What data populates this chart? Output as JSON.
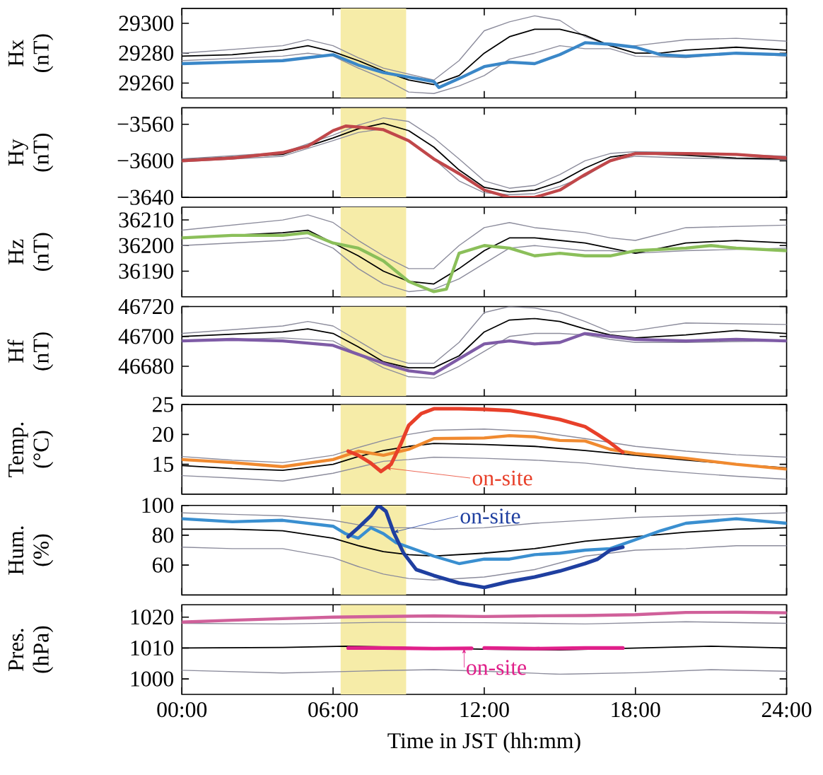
{
  "chart_data": [
    {
      "type": "line",
      "ylabel": "Hx (nT)",
      "xlim": [
        0,
        24
      ],
      "ylim": [
        29250,
        29310
      ],
      "yticks": [
        29260,
        29280,
        29300
      ],
      "xticks": [
        0,
        6,
        12,
        18,
        24
      ],
      "tick_labels": "y",
      "bands": [
        {
          "axis": "x",
          "from": 6.3,
          "to": 8.9,
          "color": "#f6eca8"
        }
      ],
      "series": [
        {
          "color": "#8c8c9c",
          "x": [
            0,
            4,
            5,
            6,
            7,
            8,
            9,
            10,
            11,
            12,
            13,
            14,
            15,
            16,
            17,
            18,
            20,
            22,
            24
          ],
          "values": [
            29280,
            29285,
            29289,
            29285,
            29277,
            29270,
            29266,
            29262,
            29275,
            29295,
            29301,
            29305,
            29302,
            29291,
            29285,
            29285,
            29289,
            29290,
            29288
          ]
        },
        {
          "color": "#8c8c9c",
          "x": [
            0,
            4,
            5,
            6,
            7,
            8,
            9,
            10,
            11,
            12,
            13,
            14,
            15,
            16,
            17,
            18,
            20,
            22,
            24
          ],
          "values": [
            29275,
            29278,
            29280,
            29278,
            29270,
            29263,
            29254,
            29253,
            29258,
            29265,
            29276,
            29280,
            29285,
            29283,
            29283,
            29278,
            29277,
            29280,
            29278
          ]
        },
        {
          "color": "#000000",
          "x": [
            0,
            2,
            4,
            5,
            6,
            7,
            8,
            9,
            10,
            11,
            12,
            13,
            14,
            15,
            16,
            17,
            18,
            19,
            20,
            22,
            24
          ],
          "values": [
            29278,
            29279,
            29282,
            29285,
            29281,
            29275,
            29268,
            29262,
            29259,
            29265,
            29280,
            29291,
            29296,
            29296,
            29292,
            29285,
            29280,
            29280,
            29282,
            29284,
            29282
          ]
        },
        {
          "color": "#3a87c8",
          "x": [
            0,
            2,
            4,
            5,
            6,
            7,
            8,
            9,
            10,
            10.2,
            11,
            12,
            13,
            14,
            15,
            15.5,
            16,
            17,
            18,
            19,
            20,
            22,
            24
          ],
          "values": [
            29273,
            29274,
            29275,
            29277,
            29279,
            29272,
            29267,
            29264,
            29261,
            29257,
            29263,
            29271,
            29274,
            29273,
            29279,
            29283,
            29287,
            29286,
            29284,
            29279,
            29278,
            29280,
            29279
          ]
        }
      ]
    },
    {
      "type": "line",
      "ylabel": "Hy (nT)",
      "xlim": [
        0,
        24
      ],
      "ylim": [
        -3640,
        -3542
      ],
      "yticks": [
        {
          "value": -3640,
          "label": "−3640"
        },
        {
          "value": -3600,
          "label": "−3600"
        },
        {
          "value": -3560,
          "label": "−3560"
        }
      ],
      "xticks": [
        0,
        6,
        12,
        18,
        24
      ],
      "tick_labels": "y",
      "bands": [
        {
          "axis": "x",
          "from": 6.3,
          "to": 8.9,
          "color": "#f6eca8"
        }
      ],
      "series": [
        {
          "color": "#8c8c9c",
          "x": [
            0,
            4,
            6,
            7,
            8,
            9,
            10,
            11,
            12,
            13,
            14,
            15,
            16,
            17,
            18,
            20,
            24
          ],
          "values": [
            -3598,
            -3591,
            -3572,
            -3561,
            -3553,
            -3557,
            -3575,
            -3598,
            -3622,
            -3630,
            -3627,
            -3615,
            -3600,
            -3592,
            -3590,
            -3591,
            -3595
          ]
        },
        {
          "color": "#8c8c9c",
          "x": [
            0,
            4,
            6,
            7,
            8,
            9,
            10,
            11,
            12,
            13,
            14,
            15,
            16,
            17,
            18,
            20,
            24
          ],
          "values": [
            -3601,
            -3595,
            -3578,
            -3569,
            -3565,
            -3578,
            -3598,
            -3622,
            -3635,
            -3637,
            -3636,
            -3628,
            -3617,
            -3600,
            -3595,
            -3597,
            -3599
          ]
        },
        {
          "color": "#000000",
          "x": [
            0,
            4,
            6,
            7,
            8,
            9,
            10,
            11,
            12,
            13,
            14,
            15,
            16,
            17,
            18,
            20,
            22,
            24
          ],
          "values": [
            -3599,
            -3593,
            -3575,
            -3565,
            -3559,
            -3567,
            -3585,
            -3610,
            -3629,
            -3634,
            -3632,
            -3623,
            -3608,
            -3596,
            -3592,
            -3594,
            -3597,
            -3598
          ]
        },
        {
          "color": "#c0474a",
          "x": [
            0,
            2,
            4,
            5,
            6,
            6.5,
            7,
            8,
            9,
            10,
            11,
            12,
            13,
            14,
            15,
            16,
            17,
            18,
            20,
            22,
            24
          ],
          "values": [
            -3600,
            -3597,
            -3591,
            -3584,
            -3567,
            -3562,
            -3563,
            -3566,
            -3578,
            -3598,
            -3614,
            -3632,
            -3640,
            -3640,
            -3632,
            -3615,
            -3600,
            -3592,
            -3592,
            -3593,
            -3597
          ]
        }
      ]
    },
    {
      "type": "line",
      "ylabel": "Hz (nT)",
      "xlim": [
        0,
        24
      ],
      "ylim": [
        36180,
        36215
      ],
      "yticks": [
        36190,
        36200,
        36210
      ],
      "xticks": [
        0,
        6,
        12,
        18,
        24
      ],
      "tick_labels": "y",
      "bands": [
        {
          "axis": "x",
          "from": 6.3,
          "to": 8.9,
          "color": "#f6eca8"
        }
      ],
      "series": [
        {
          "color": "#8c8c9c",
          "x": [
            0,
            4,
            5,
            6,
            7,
            8,
            9,
            10,
            11,
            12,
            13,
            14,
            15,
            16,
            17,
            18,
            20,
            24
          ],
          "values": [
            36206,
            36210,
            36212,
            36209,
            36202,
            36196,
            36191,
            36191,
            36200,
            36207,
            36209,
            36207,
            36206,
            36205,
            36203,
            36202,
            36207,
            36208
          ]
        },
        {
          "color": "#8c8c9c",
          "x": [
            0,
            4,
            5,
            6,
            7,
            8,
            9,
            10,
            11,
            12,
            13,
            14,
            15,
            16,
            17,
            18,
            20,
            24
          ],
          "values": [
            36200,
            36202,
            36203,
            36199,
            36191,
            36185,
            36182,
            36183,
            36187,
            36193,
            36199,
            36200,
            36199,
            36198,
            36198,
            36197,
            36198,
            36199
          ]
        },
        {
          "color": "#000000",
          "x": [
            0,
            4,
            5,
            6,
            7,
            8,
            9,
            10,
            11,
            12,
            13,
            14,
            15,
            16,
            17,
            18,
            20,
            22,
            24
          ],
          "values": [
            36203,
            36205,
            36206,
            36201,
            36196,
            36190,
            36186,
            36185,
            36191,
            36198,
            36203,
            36203,
            36202,
            36201,
            36199,
            36197,
            36201,
            36202,
            36201
          ]
        },
        {
          "color": "#8bbf5a",
          "x": [
            0,
            2,
            4,
            5,
            6,
            7,
            8,
            9,
            10,
            10.5,
            11,
            12,
            13,
            14,
            15,
            16,
            17,
            18,
            20,
            21,
            22,
            24
          ],
          "values": [
            36203,
            36204,
            36204,
            36205,
            36201,
            36199,
            36194,
            36186,
            36182,
            36183,
            36197,
            36200,
            36199,
            36196,
            36197,
            36196,
            36196,
            36198,
            36199,
            36200,
            36199,
            36198
          ]
        }
      ]
    },
    {
      "type": "line",
      "ylabel": "Hf (nT)",
      "xlim": [
        0,
        24
      ],
      "ylim": [
        46660,
        46720
      ],
      "yticks": [
        46680,
        46700,
        46720
      ],
      "xticks": [
        0,
        6,
        12,
        18,
        24
      ],
      "tick_labels": "y",
      "bands": [
        {
          "axis": "x",
          "from": 6.3,
          "to": 8.9,
          "color": "#f6eca8"
        }
      ],
      "series": [
        {
          "color": "#8c8c9c",
          "x": [
            0,
            4,
            5,
            6,
            7,
            8,
            9,
            10,
            11,
            12,
            13,
            14,
            15,
            16,
            17,
            18,
            20,
            24
          ],
          "values": [
            46702,
            46707,
            46710,
            46707,
            46697,
            46687,
            46682,
            46682,
            46696,
            46716,
            46720,
            46719,
            46716,
            46710,
            46703,
            46704,
            46709,
            46708
          ]
        },
        {
          "color": "#8c8c9c",
          "x": [
            0,
            4,
            6,
            7,
            8,
            9,
            10,
            11,
            12,
            13,
            14,
            15,
            16,
            17,
            18,
            20,
            24
          ],
          "values": [
            46697,
            46699,
            46697,
            46688,
            46679,
            46673,
            46672,
            46680,
            46690,
            46700,
            46702,
            46702,
            46701,
            46698,
            46696,
            46696,
            46697
          ]
        },
        {
          "color": "#000000",
          "x": [
            0,
            4,
            5,
            6,
            7,
            8,
            9,
            10,
            11,
            12,
            13,
            14,
            15,
            16,
            17,
            18,
            20,
            22,
            24
          ],
          "values": [
            46700,
            46703,
            46705,
            46702,
            46693,
            46683,
            46679,
            46679,
            46687,
            46703,
            46711,
            46712,
            46710,
            46705,
            46701,
            46699,
            46701,
            46704,
            46702
          ]
        },
        {
          "color": "#7e5ba6",
          "x": [
            0,
            2,
            4,
            6,
            7,
            8,
            9,
            10,
            11,
            12,
            13,
            14,
            15,
            16,
            17,
            18,
            20,
            22,
            24
          ],
          "values": [
            46697,
            46698,
            46697,
            46694,
            46688,
            46682,
            46677,
            46675,
            46685,
            46695,
            46697,
            46695,
            46696,
            46702,
            46700,
            46698,
            46697,
            46698,
            46697
          ]
        }
      ]
    },
    {
      "type": "line",
      "ylabel": "Temp. (°C)",
      "xlim": [
        0,
        24
      ],
      "ylim": [
        10,
        25
      ],
      "yticks": [
        15,
        20,
        25
      ],
      "xticks": [
        0,
        6,
        12,
        18,
        24
      ],
      "tick_labels": "y",
      "bands": [
        {
          "axis": "x",
          "from": 6.3,
          "to": 8.9,
          "color": "#f6eca8"
        }
      ],
      "annotations": [
        {
          "text": "on-site",
          "x": 8.1,
          "y": 14.4
        }
      ],
      "series": [
        {
          "color": "#8c8c9c",
          "x": [
            0,
            2,
            4,
            6,
            7,
            8,
            9,
            10,
            12,
            14,
            16,
            18,
            20,
            22,
            24
          ],
          "values": [
            16.3,
            15.7,
            15.3,
            16.5,
            17.8,
            19.0,
            20.0,
            20.7,
            20.9,
            20.5,
            19.3,
            18.0,
            17.2,
            16.6,
            16.2
          ]
        },
        {
          "color": "#8c8c9c",
          "x": [
            0,
            2,
            4,
            6,
            7,
            8,
            9,
            10,
            12,
            14,
            16,
            18,
            20,
            22,
            24
          ],
          "values": [
            13.1,
            12.7,
            12.2,
            13.5,
            14.5,
            15.5,
            15.8,
            16.2,
            16.0,
            15.7,
            15.2,
            14.3,
            13.6,
            13.0,
            12.5
          ]
        },
        {
          "color": "#000000",
          "x": [
            0,
            2,
            4,
            6,
            7,
            8,
            9,
            10,
            12,
            14,
            16,
            18,
            20,
            22,
            24
          ],
          "values": [
            14.8,
            14.3,
            14.0,
            15.0,
            16.3,
            17.3,
            18.0,
            18.5,
            18.3,
            18.0,
            17.3,
            16.5,
            15.7,
            15.0,
            14.4
          ]
        },
        {
          "color": "#f08a30",
          "x": [
            0,
            2,
            4,
            6,
            7,
            8,
            9,
            10,
            12,
            13,
            14,
            15,
            16,
            17,
            18,
            20,
            22,
            24
          ],
          "values": [
            15.8,
            15.3,
            14.6,
            15.8,
            17.2,
            16.5,
            17.5,
            19.3,
            19.4,
            19.8,
            19.6,
            19.0,
            18.9,
            17.5,
            16.8,
            16.0,
            15.0,
            14.2
          ]
        },
        {
          "color": "#e8402a",
          "x": [
            6.6,
            7,
            7.5,
            7.9,
            8.3,
            8.7,
            9,
            9.5,
            10,
            11,
            12,
            13,
            14,
            15,
            16,
            16.5,
            17,
            17.5
          ],
          "values": [
            17.2,
            16.5,
            15.2,
            13.8,
            15.0,
            18.5,
            21.5,
            23.5,
            24.3,
            24.3,
            24.2,
            24.0,
            23.3,
            22.5,
            21.3,
            20.0,
            18.6,
            17.0
          ]
        }
      ]
    },
    {
      "type": "line",
      "ylabel": "Hum. (%)",
      "xlim": [
        0,
        24
      ],
      "ylim": [
        40,
        100
      ],
      "yticks": [
        60,
        80,
        100
      ],
      "xticks": [
        0,
        6,
        12,
        18,
        24
      ],
      "tick_labels": "y",
      "bands": [
        {
          "axis": "x",
          "from": 6.3,
          "to": 8.9,
          "color": "#f6eca8"
        }
      ],
      "annotations": [
        {
          "text": "on-site",
          "x": 8.4,
          "y": 82
        }
      ],
      "series": [
        {
          "color": "#8c8c9c",
          "x": [
            0,
            2,
            4,
            6,
            7,
            8,
            9,
            10,
            12,
            14,
            16,
            18,
            20,
            22,
            24
          ],
          "values": [
            95,
            94,
            93,
            90,
            87,
            85,
            85,
            84,
            85,
            88,
            90,
            92,
            93,
            94,
            95
          ]
        },
        {
          "color": "#8c8c9c",
          "x": [
            0,
            2,
            4,
            6,
            7,
            8,
            9,
            10,
            12,
            14,
            16,
            18,
            20,
            22,
            24
          ],
          "values": [
            72,
            71,
            71,
            65,
            59,
            54,
            51,
            50,
            52,
            57,
            66,
            70,
            71,
            73,
            73
          ]
        },
        {
          "color": "#000000",
          "x": [
            0,
            2,
            4,
            6,
            7,
            8,
            9,
            10,
            12,
            14,
            16,
            18,
            20,
            22,
            24
          ],
          "values": [
            84,
            84,
            83,
            78,
            73,
            69,
            67,
            66,
            68,
            71,
            76,
            79,
            82,
            84,
            85
          ]
        },
        {
          "color": "#3a8fd0",
          "x": [
            0,
            2,
            4,
            6,
            6.5,
            7,
            7.5,
            8,
            8.5,
            9,
            10,
            11,
            12,
            13,
            14,
            15,
            16,
            17,
            18,
            19,
            20,
            22,
            24
          ],
          "values": [
            91,
            89,
            90,
            86,
            81,
            78,
            85,
            81,
            75,
            72,
            66,
            61,
            64,
            64,
            67,
            68,
            70,
            71,
            77,
            83,
            88,
            91,
            88
          ]
        },
        {
          "color": "#1f3fa0",
          "x": [
            6.6,
            7,
            7.5,
            7.8,
            8.1,
            8.4,
            8.8,
            9.3,
            10,
            11,
            12,
            13,
            14,
            15,
            16,
            16.5,
            17,
            17.5
          ],
          "values": [
            79,
            85,
            93,
            100,
            96,
            82,
            68,
            57,
            53,
            48,
            45,
            49,
            52,
            56,
            61,
            64,
            70,
            72
          ]
        }
      ]
    },
    {
      "type": "line",
      "ylabel": "Pres. (hPa)",
      "xlabel": "Time in JST (hh:mm)",
      "xlim": [
        0,
        24
      ],
      "ylim": [
        995,
        1024
      ],
      "yticks": [
        1000,
        1010,
        1020
      ],
      "xticks": [
        {
          "value": 0,
          "label": "00:00"
        },
        {
          "value": 6,
          "label": "06:00"
        },
        {
          "value": 12,
          "label": "12:00"
        },
        {
          "value": 18,
          "label": "18:00"
        },
        {
          "value": 24,
          "label": "24:00"
        }
      ],
      "bands": [
        {
          "axis": "x",
          "from": 6.3,
          "to": 8.9,
          "color": "#f6eca8"
        }
      ],
      "annotations": [
        {
          "text": "on-site",
          "x": 11.2,
          "y": 1009.9
        }
      ],
      "series": [
        {
          "color": "#8c8c9c",
          "x": [
            0,
            4,
            8,
            12,
            16,
            20,
            24
          ],
          "values": [
            1018,
            1017.8,
            1018.3,
            1018.2,
            1017.8,
            1018.5,
            1018
          ]
        },
        {
          "color": "#8c8c9c",
          "x": [
            0,
            4,
            8,
            10,
            12,
            15,
            18,
            21,
            24
          ],
          "values": [
            1002.8,
            1001.9,
            1002.7,
            1003,
            1002.5,
            1001.5,
            1002,
            1003,
            1002.5
          ]
        },
        {
          "color": "#000000",
          "x": [
            0,
            4,
            6.5,
            12,
            15,
            18,
            21,
            24
          ],
          "values": [
            1010,
            1010.2,
            1010.6,
            1009.6,
            1009.4,
            1010,
            1010.6,
            1010
          ]
        },
        {
          "color": "#d0609a",
          "x": [
            0,
            2,
            4,
            6,
            8,
            10,
            12,
            14,
            16,
            18,
            20,
            22,
            24
          ],
          "values": [
            1018.4,
            1019,
            1019.5,
            1020,
            1020.2,
            1020.4,
            1020.2,
            1020.4,
            1020.5,
            1020.8,
            1021.5,
            1021.6,
            1021.4
          ]
        },
        {
          "color": "#e0208a",
          "x": [
            6.6,
            8,
            10,
            11.5,
            11.75,
            12,
            14,
            16,
            17.5
          ],
          "values": [
            1010,
            1010,
            1009.8,
            1009.9,
            null,
            1010,
            1009.8,
            1010,
            1010
          ]
        }
      ]
    }
  ]
}
